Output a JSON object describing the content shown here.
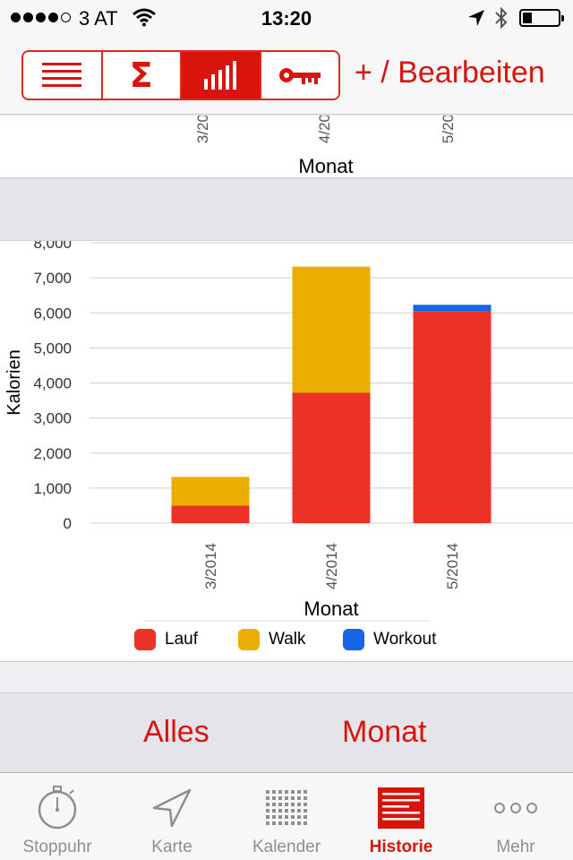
{
  "status": {
    "carrier": "3 AT",
    "time": "13:20",
    "battery_level": 0.25,
    "signal_bars": 4,
    "icons": [
      "wifi-icon",
      "location-arrow-icon",
      "bluetooth-icon",
      "battery-icon"
    ]
  },
  "toolbar": {
    "segments": [
      {
        "name": "list",
        "icon": "list-icon"
      },
      {
        "name": "sum",
        "icon": "sigma-icon",
        "label": "Σ"
      },
      {
        "name": "chart",
        "icon": "bar-chart-icon",
        "active": true
      },
      {
        "name": "key",
        "icon": "key-icon"
      }
    ],
    "edit_label": "+ / Bearbeiten"
  },
  "top_chart": {
    "ticks": [
      "3/20",
      "4/20",
      "5/20"
    ],
    "xlabel": "Monat"
  },
  "colors": {
    "accent": "#d9140c",
    "lauf": "#ec3127",
    "walk": "#eaad00",
    "workout": "#1565e6"
  },
  "chart_data": {
    "type": "bar",
    "stacked": true,
    "categories": [
      "3/2014",
      "4/2014",
      "5/2014"
    ],
    "series": [
      {
        "name": "Lauf",
        "values": [
          500,
          3720,
          6050
        ]
      },
      {
        "name": "Walk",
        "values": [
          820,
          3600,
          0
        ]
      },
      {
        "name": "Workout",
        "values": [
          0,
          0,
          180
        ]
      }
    ],
    "xlabel": "Monat",
    "ylabel": "Kalorien",
    "ylim": [
      0,
      8000
    ],
    "yticks": [
      "0",
      "1,000",
      "2,000",
      "3,000",
      "4,000",
      "5,000",
      "6,000",
      "7,000",
      "8,000"
    ],
    "ytick_values": [
      0,
      1000,
      2000,
      3000,
      4000,
      5000,
      6000,
      7000,
      8000
    ],
    "grid": true,
    "legend_position": "bottom"
  },
  "period": {
    "left": "Alles",
    "right": "Monat"
  },
  "tabs": [
    {
      "label": "Stoppuhr",
      "icon": "stopwatch-icon"
    },
    {
      "label": "Karte",
      "icon": "map-arrow-icon"
    },
    {
      "label": "Kalender",
      "icon": "calendar-grid-icon"
    },
    {
      "label": "Historie",
      "icon": "history-list-icon",
      "active": true
    },
    {
      "label": "Mehr",
      "icon": "more-dots-icon"
    }
  ]
}
